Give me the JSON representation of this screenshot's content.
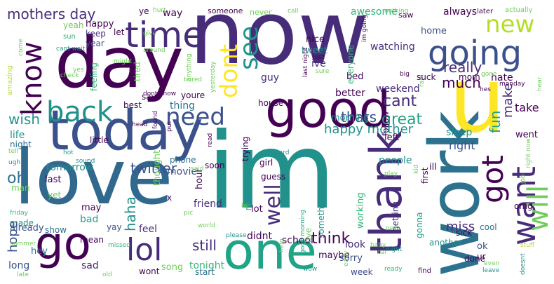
{
  "palette": {
    "dark_purple": "#440154",
    "purple": "#472c7a",
    "indigo": "#3b518b",
    "blue": "#31688e",
    "teal_blue": "#2c728e",
    "teal": "#21918c",
    "sea_green": "#20a386",
    "green": "#35b779",
    "light_green": "#6ece58",
    "lime": "#b5de2b",
    "yellow": "#fde725"
  },
  "words": [
    "now",
    "im",
    "day",
    "love",
    "work",
    "today",
    "good",
    "one",
    "u",
    "time",
    "going",
    "go",
    "thank",
    "lol",
    "back",
    "know",
    "want",
    "got",
    "new",
    "dont",
    "see",
    "need",
    "will",
    "well",
    "much",
    "really",
    "twitter",
    "fun",
    "cant",
    "great",
    "make",
    "think",
    "still",
    "oh",
    "wish",
    "thats",
    "haha",
    "mothers day",
    "happy mother",
    "morning",
    "miss",
    "sleep",
    "tomorrow",
    "tonight",
    "right",
    "hope",
    "hate",
    "weekend",
    "take",
    "way",
    "always",
    "home",
    "watching",
    "nice",
    "tweet",
    "ive",
    "guy",
    "bed",
    "better",
    "house",
    "thing",
    "phone",
    "movie",
    "friend",
    "lot",
    "hour",
    "school",
    "didnt",
    "sorry",
    "look",
    "maybe",
    "sad",
    "long",
    "hey",
    "song",
    "wont",
    "start",
    "week",
    "done",
    "ok",
    "another",
    "feel",
    "may",
    "last",
    "bad",
    "yay",
    "show",
    "made",
    "man",
    "already",
    "mean",
    "yet",
    "life",
    "night",
    "little",
    "best",
    "say",
    "youre",
    "tired",
    "feeling",
    "year",
    "keep",
    "let",
    "happy",
    "yeah",
    "ye",
    "someone",
    "never",
    "awesome",
    "saw",
    "later",
    "actually",
    "nothing",
    "call",
    "hurt",
    "sun",
    "cant wait",
    "might",
    "around",
    "come",
    "amazing",
    "check",
    "dont know",
    "head",
    "found",
    "give",
    "tell",
    "ugh",
    "sound",
    "hot",
    "said",
    "x",
    "thought",
    "pic",
    "world",
    "missed",
    "summer",
    "late",
    "old",
    "friday",
    "please",
    "bit",
    "finally",
    "getting",
    "something",
    "live",
    "working",
    "girl",
    "guess",
    "soon",
    "trying",
    "hard",
    "follow",
    "left",
    "first",
    "went",
    "ill",
    "omg",
    "people",
    "cool",
    "gonna",
    "sick",
    "baby",
    "stuff",
    "next",
    "early",
    "wow",
    "help",
    "good morning",
    "ready",
    "find",
    "leave",
    "even",
    "doesnt",
    "ur",
    "car",
    "play",
    "kid",
    "job",
    "night",
    "right now",
    "hes",
    "hear",
    "monday",
    "big",
    "rain",
    "gone",
    "suck",
    "mom",
    "im going",
    "lost",
    "sure",
    "everyone",
    "last night",
    "anything",
    "yesterday",
    "put",
    "read",
    "bored",
    "yes"
  ]
}
